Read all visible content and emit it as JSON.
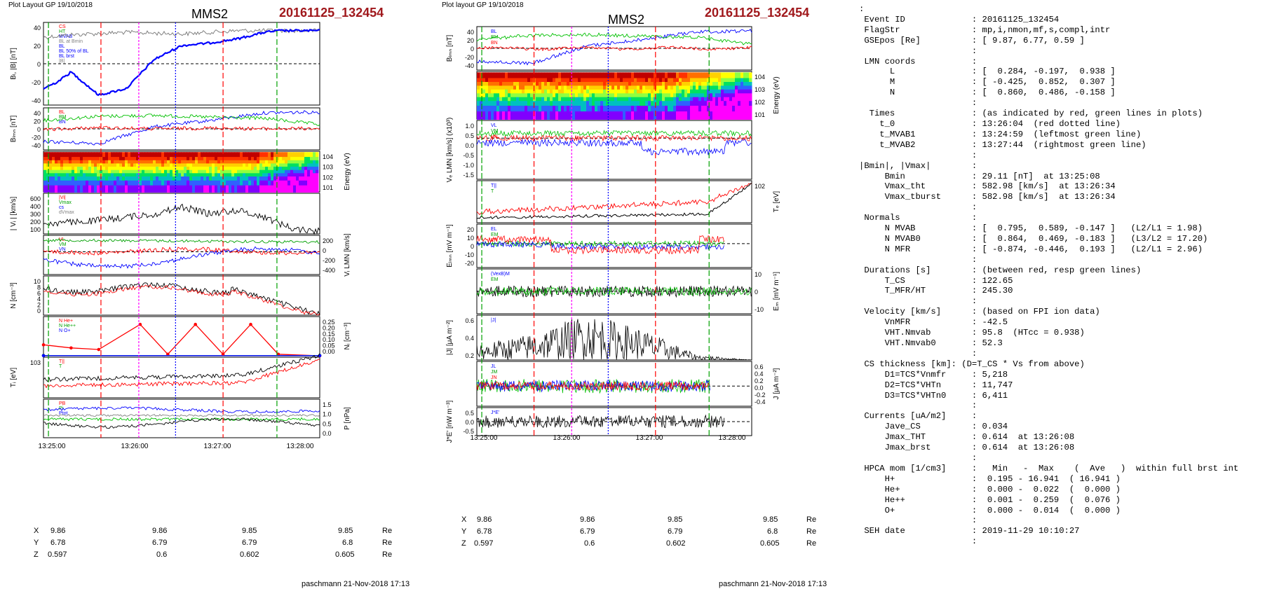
{
  "left": {
    "layout_label": "Plot Layout GP 19/10/2018",
    "title": "MMS2",
    "event": "20161125_132454",
    "footer": "paschmann 21-Nov-2018 17:13",
    "time_ticks": [
      "13:25:00",
      "13:26:00",
      "13:27:00",
      "13:28:00"
    ],
    "coord_rows": [
      {
        "label": "X",
        "values": [
          "9.86",
          "9.86",
          "9.85",
          "9.85"
        ],
        "unit": "Re"
      },
      {
        "label": "Y",
        "values": [
          "6.78",
          "6.79",
          "6.79",
          "6.8"
        ],
        "unit": "Re"
      },
      {
        "label": "Z",
        "values": [
          "0.597",
          "0.6",
          "0.602",
          "0.605"
        ],
        "unit": "Re"
      }
    ],
    "panels": [
      {
        "ylabel": "B_L, |B| [nT]",
        "ticks": [
          "40",
          "20",
          "0",
          "-20",
          "-40"
        ],
        "legend": [
          "CS",
          "HT",
          "MVAB",
          "BL at Bmin",
          "BL",
          "BL 50% of BL",
          "BL brst",
          "|B|"
        ]
      },
      {
        "ylabel": "B_LMN [nT]",
        "ticks": [
          "40",
          "20",
          "0",
          "-20",
          "-40"
        ],
        "legend": [
          "BL",
          "BM",
          "BN"
        ]
      },
      {
        "ylabel": "Energy (eV)",
        "ticks": [
          "10^4",
          "10^3",
          "10^2",
          "10^1"
        ]
      },
      {
        "ylabel": "|V_i| [km/s]",
        "ticks": [
          "600",
          "400",
          "300",
          "200",
          "100"
        ],
        "legend": [
          "|Vi|",
          "Vmax",
          "cs",
          "dVmax"
        ]
      },
      {
        "ylabel": "V_i LMN [km/s]",
        "ticks": [
          "200",
          "0",
          "-200",
          "-400"
        ],
        "legend": [
          "VL",
          "VM",
          "VN"
        ]
      },
      {
        "ylabel": "N [cm^-3]",
        "ticks": [
          "10",
          "8",
          "6",
          "4",
          "2",
          "0"
        ]
      },
      {
        "ylabel": "N_i [cm^-3]",
        "ticks": [
          "0.25",
          "0.20",
          "0.15",
          "0.10",
          "0.05",
          "0.00"
        ],
        "legend": [
          "N He+",
          "N He++",
          "N O+"
        ]
      },
      {
        "ylabel": "T_i [eV]",
        "ticks": [
          "10^3"
        ],
        "legend": [
          "T||",
          "T"
        ]
      },
      {
        "ylabel": "P [nPa]",
        "ticks": [
          "1.5",
          "1.0",
          "0.5",
          "0.0"
        ],
        "legend": [
          "PB",
          "Pi",
          "Ptot"
        ]
      }
    ]
  },
  "middle": {
    "layout_label": "Plot layout GP 19/10/2018",
    "title": "MMS2",
    "event": "20161125_132454",
    "footer": "paschmann 21-Nov-2018 17:13",
    "time_ticks": [
      "13:25:00",
      "13:26:00",
      "13:27:00",
      "13:28:00"
    ],
    "coord_rows": [
      {
        "label": "X",
        "values": [
          "9.86",
          "9.86",
          "9.85",
          "9.85"
        ],
        "unit": "Re"
      },
      {
        "label": "Y",
        "values": [
          "6.78",
          "6.79",
          "6.79",
          "6.8"
        ],
        "unit": "Re"
      },
      {
        "label": "Z",
        "values": [
          "0.597",
          "0.6",
          "0.602",
          "0.605"
        ],
        "unit": "Re"
      }
    ],
    "panels": [
      {
        "ylabel": "B_LMN [nT]",
        "ticks": [
          "40",
          "20",
          "0",
          "-20",
          "-40"
        ],
        "legend": [
          "BL",
          "BM",
          "BN"
        ]
      },
      {
        "ylabel": "Energy (eV)",
        "ticks": [
          "10^4",
          "10^3",
          "10^2",
          "10^1"
        ]
      },
      {
        "ylabel": "V_e LMN [km/s] (x10^3)",
        "ticks": [
          "1.0",
          "0.5",
          "0.0",
          "-0.5",
          "-1.0",
          "-1.5"
        ],
        "legend": [
          "VL",
          "VM",
          "VN"
        ]
      },
      {
        "ylabel": "T_e [eV]",
        "ticks": [
          "10^2"
        ],
        "legend": [
          "T||",
          "T"
        ]
      },
      {
        "ylabel": "E_LMN [mV m^-1]",
        "ticks": [
          "20",
          "10",
          "0",
          "-10",
          "-20"
        ],
        "legend": [
          "EL",
          "EM",
          "EN"
        ]
      },
      {
        "ylabel": "E_M [mV m^-1]",
        "ticks": [
          "10",
          "0",
          "-10"
        ],
        "legend": [
          "(VexB)M",
          "EM"
        ]
      },
      {
        "ylabel": "|J| [uA m^-2]",
        "ticks": [
          "0.6",
          "0.4",
          "0.2"
        ],
        "legend": [
          "|J|"
        ]
      },
      {
        "ylabel": "J [uA m^-2]",
        "ticks": [
          "0.6",
          "0.4",
          "0.2",
          "0.0",
          "-0.2",
          "-0.4"
        ],
        "legend": [
          "JL",
          "JM",
          "JN"
        ]
      },
      {
        "ylabel": "J*E' [nW m^-3]",
        "ticks": [
          "0.5",
          "0.0",
          "-0.5"
        ],
        "legend": [
          "J*E'"
        ]
      }
    ]
  },
  "summary": {
    "lines": [
      ":",
      " Event ID             : 20161125_132454",
      " FlagStr              : mp,i,nmon,mf,s,compl,intr",
      " GSEpos [Re]          : [ 9.87, 6.77, 0.59 ]",
      "                      :",
      " LMN coords           :",
      "      L               : [  0.284, -0.197,  0.938 ]",
      "      M               : [ -0.425,  0.852,  0.307 ]",
      "      N               : [  0.860,  0.486, -0.158 ]",
      "                      :",
      "  Times               : (as indicated by red, green lines in plots)",
      "    t_0               : 13:26:04  (red dotted line)",
      "    t_MVAB1           : 13:24:59  (leftmost green line)",
      "    t_MVAB2           : 13:27:44  (rightmost green line)",
      "                      :",
      "|Bmin|, |Vmax|        :",
      "     Bmin             : 29.11 [nT]  at 13:25:08",
      "     Vmax_tht         : 582.98 [km/s]  at 13:26:34",
      "     Vmax_tburst      : 582.98 [km/s]  at 13:26:34",
      "                      :",
      " Normals              :",
      "     N MVAB           : [  0.795,  0.589, -0.147 ]   (L2/L1 = 1.98)",
      "     N MVAB0          : [  0.864,  0.469, -0.183 ]   (L3/L2 = 17.20)",
      "     N MFR            : [ -0.874, -0.446,  0.193 ]   (L2/L1 = 2.96)",
      "                      :",
      " Durations [s]        : (between red, resp green lines)",
      "     T_CS             : 122.65",
      "     T_MFR/HT         : 245.30",
      "                      :",
      " Velocity [km/s]      : (based on FPI ion data)",
      "     VnMFR            : -42.5",
      "     VHT.Nmvab        : 95.8  (HTcc = 0.938)",
      "     VHT.Nmvab0       : 52.3",
      "                      :",
      " CS thickness [km]: (D=T_CS * Vs from above)",
      "     D1=TCS*Vnmfr     : 5,218",
      "     D2=TCS*VHTn      : 11,747",
      "     D3=TCS*VHTn0     : 6,411",
      "                      :",
      " Currents [uA/m2]     :",
      "     Jave_CS          : 0.034",
      "     Jmax_THT         : 0.614  at 13:26:08",
      "     Jmax_brst        : 0.614  at 13:26:08",
      "                      :",
      " HPCA mom [1/cm3]     :   Min   -  Max    (  Ave   )  within full brst int",
      "     H+               :  0.195 - 16.941  ( 16.941 )",
      "     He+              :  0.000 -  0.022  (  0.000 )",
      "     He++             :  0.001 -  0.259  (  0.076 )",
      "     O+               :  0.000 -  0.014  (  0.000 )",
      "                      :",
      " SEH date             : 2019-11-29 10:10:27",
      "                      :"
    ]
  },
  "chart_data": [
    {
      "type": "line",
      "title": "MMS2",
      "subtitle": "20161125_132454",
      "xlabel": "",
      "x_ticks": [
        "13:25:00",
        "13:26:00",
        "13:27:00",
        "13:28:00"
      ],
      "panels": [
        {
          "name": "B_L, |B| [nT]",
          "ylim": [
            -50,
            50
          ],
          "series": [
            {
              "name": "|B|",
              "color": "#808080",
              "x_frac": [
                0,
                0.1,
                0.3,
                0.5,
                0.7,
                0.85,
                1.0
              ],
              "values": [
                32,
                35,
                38,
                36,
                40,
                40,
                40
              ]
            },
            {
              "name": "BL",
              "color": "#0000ff",
              "x_frac": [
                0,
                0.05,
                0.1,
                0.2,
                0.3,
                0.4,
                0.5,
                0.6,
                0.7,
                0.8,
                0.85,
                0.9,
                1.0
              ],
              "values": [
                -30,
                -22,
                -10,
                -38,
                -30,
                5,
                22,
                25,
                30,
                38,
                40,
                40,
                40
              ]
            }
          ]
        },
        {
          "name": "B_LMN [nT]",
          "ylim": [
            -50,
            50
          ],
          "series": [
            {
              "name": "BL",
              "color": "#0000ff",
              "x_frac": [
                0,
                0.2,
                0.4,
                0.6,
                0.8,
                1.0
              ],
              "values": [
                -30,
                -35,
                5,
                20,
                38,
                40
              ]
            },
            {
              "name": "BM",
              "color": "#00c000",
              "x_frac": [
                0,
                0.2,
                0.4,
                0.6,
                0.8,
                1.0
              ],
              "values": [
                20,
                30,
                32,
                28,
                25,
                10
              ]
            },
            {
              "name": "BN",
              "color": "#ff0000",
              "x_frac": [
                0,
                0.2,
                0.4,
                0.6,
                0.8,
                1.0
              ],
              "values": [
                -2,
                3,
                0,
                2,
                0,
                1
              ]
            }
          ]
        },
        {
          "name": "|V_i| [km/s]",
          "ylim": [
            0,
            600
          ],
          "series": [
            {
              "name": "|Vi|",
              "color": "#000000",
              "x_frac": [
                0,
                0.1,
                0.2,
                0.3,
                0.4,
                0.5,
                0.6,
                0.7,
                0.8,
                0.9,
                1.0
              ],
              "values": [
                150,
                170,
                200,
                250,
                290,
                400,
                300,
                350,
                250,
                80,
                40
              ]
            }
          ]
        },
        {
          "name": "N_i [cm^-3]",
          "ylim": [
            0,
            0.25
          ],
          "series": [
            {
              "name": "N He++",
              "color": "#ff0000",
              "x_frac": [
                0,
                0.1,
                0.2,
                0.35,
                0.45,
                0.55,
                0.65,
                0.75,
                0.85,
                1.0
              ],
              "values": [
                0.07,
                0.05,
                0.04,
                0.2,
                0.01,
                0.2,
                0.01,
                0.2,
                0.01,
                0.0
              ]
            },
            {
              "name": "N He+",
              "color": "#00a000",
              "x_frac": [
                0,
                1
              ],
              "values": [
                0.002,
                0.002
              ]
            },
            {
              "name": "N O+",
              "color": "#0000ff",
              "x_frac": [
                0,
                1
              ],
              "values": [
                0.001,
                0.001
              ]
            }
          ]
        }
      ]
    },
    {
      "type": "line",
      "title": "MMS2",
      "subtitle": "20161125_132454",
      "xlabel": "",
      "x_ticks": [
        "13:25:00",
        "13:26:00",
        "13:27:00",
        "13:28:00"
      ],
      "panels": [
        {
          "name": "B_LMN [nT]",
          "ylim": [
            -50,
            50
          ],
          "series": [
            {
              "name": "BL",
              "color": "#0000ff",
              "x_frac": [
                0,
                0.2,
                0.4,
                0.6,
                0.8,
                1.0
              ],
              "values": [
                -30,
                -35,
                5,
                20,
                38,
                40
              ]
            },
            {
              "name": "BM",
              "color": "#00c000",
              "x_frac": [
                0,
                0.2,
                0.4,
                0.6,
                0.8,
                1.0
              ],
              "values": [
                20,
                30,
                32,
                28,
                25,
                10
              ]
            }
          ]
        },
        {
          "name": "|J| [uA m^-2]",
          "ylim": [
            0,
            0.6
          ],
          "series": [
            {
              "name": "|J|",
              "color": "#000000",
              "x_frac": [
                0,
                0.2,
                0.4,
                0.6,
                0.8,
                1.0
              ],
              "values": [
                0.15,
                0.25,
                0.45,
                0.3,
                0.05,
                0.0
              ]
            }
          ]
        }
      ]
    }
  ]
}
